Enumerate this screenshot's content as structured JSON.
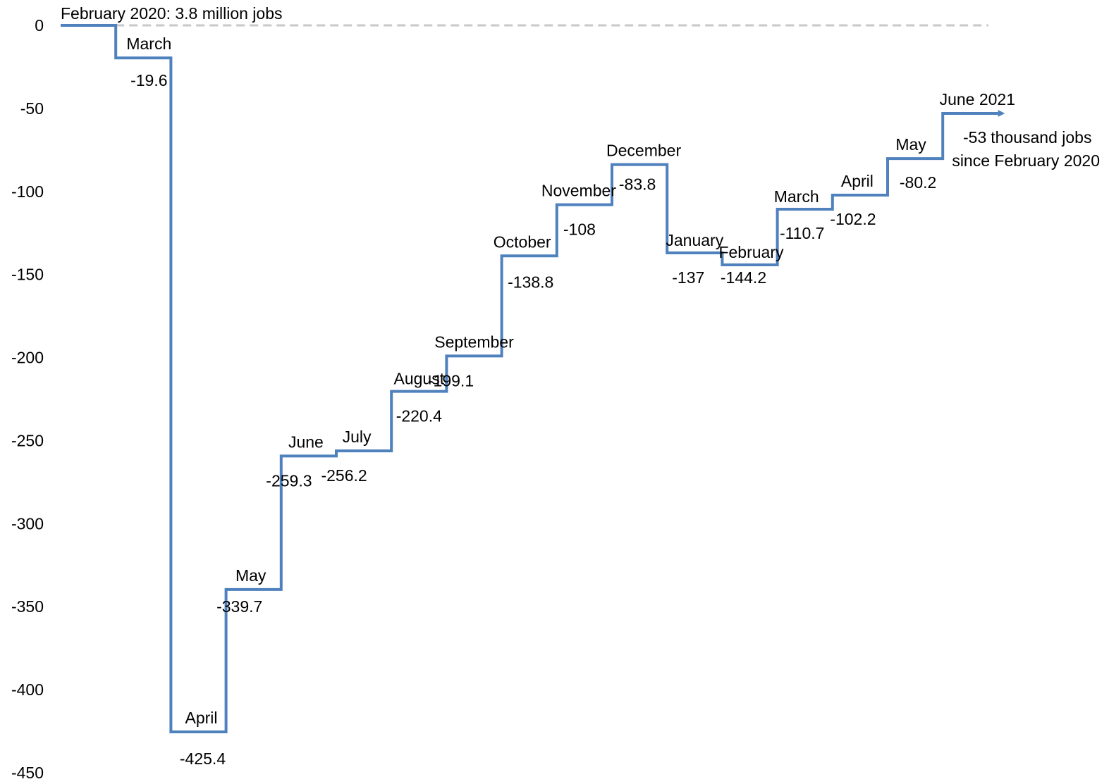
{
  "chart_data": {
    "type": "line",
    "step": true,
    "title": "",
    "xlabel": "",
    "ylabel": "",
    "ylim": [
      -450,
      0
    ],
    "yticks": [
      "0",
      "-50",
      "-100",
      "-150",
      "-200",
      "-250",
      "-300",
      "-350",
      "-400",
      "-450"
    ],
    "grid": false,
    "legend": "none",
    "colors": {
      "line": "#4f81bd",
      "baseline": "#c8c8c8"
    },
    "baseline_label": "February 2020: 3.8 million jobs",
    "points": [
      {
        "label": "February 2020",
        "value": 0,
        "value_text": ""
      },
      {
        "label": "March",
        "value": -19.6,
        "value_text": "-19.6"
      },
      {
        "label": "April",
        "value": -425.4,
        "value_text": "-425.4"
      },
      {
        "label": "May",
        "value": -339.7,
        "value_text": "-339.7"
      },
      {
        "label": "June",
        "value": -259.3,
        "value_text": "-259.3"
      },
      {
        "label": "July",
        "value": -256.2,
        "value_text": "-256.2"
      },
      {
        "label": "August",
        "value": -220.4,
        "value_text": "-220.4"
      },
      {
        "label": "September",
        "value": -199.1,
        "value_text": "-199.1"
      },
      {
        "label": "October",
        "value": -138.8,
        "value_text": "-138.8"
      },
      {
        "label": "November",
        "value": -108,
        "value_text": "-108"
      },
      {
        "label": "December",
        "value": -83.8,
        "value_text": "-83.8"
      },
      {
        "label": "January",
        "value": -137,
        "value_text": "-137"
      },
      {
        "label": "February",
        "value": -144.2,
        "value_text": "-144.2"
      },
      {
        "label": "March",
        "value": -110.7,
        "value_text": "-110.7"
      },
      {
        "label": "April",
        "value": -102.2,
        "value_text": "-102.2"
      },
      {
        "label": "May",
        "value": -80.2,
        "value_text": "-80.2"
      },
      {
        "label": "June 2021",
        "value": -53,
        "value_text": "-53"
      }
    ],
    "end_annotation": {
      "value": "-53",
      "line1": "thousand jobs",
      "line2": "since February 2020"
    }
  }
}
